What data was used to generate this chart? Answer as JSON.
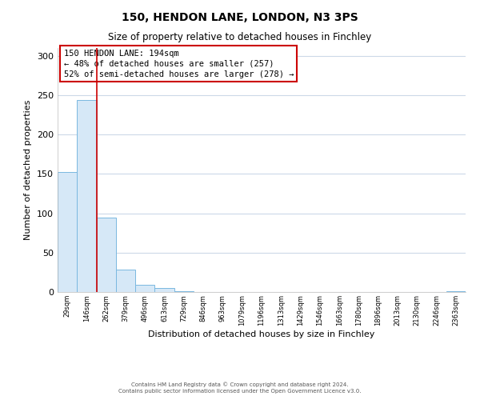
{
  "title": "150, HENDON LANE, LONDON, N3 3PS",
  "subtitle": "Size of property relative to detached houses in Finchley",
  "xlabel": "Distribution of detached houses by size in Finchley",
  "ylabel": "Number of detached properties",
  "bar_values": [
    152,
    244,
    95,
    28,
    9,
    5,
    1,
    0,
    0,
    0,
    0,
    0,
    0,
    0,
    0,
    0,
    0,
    0,
    0,
    0,
    1
  ],
  "bin_labels": [
    "29sqm",
    "146sqm",
    "262sqm",
    "379sqm",
    "496sqm",
    "613sqm",
    "729sqm",
    "846sqm",
    "963sqm",
    "1079sqm",
    "1196sqm",
    "1313sqm",
    "1429sqm",
    "1546sqm",
    "1663sqm",
    "1780sqm",
    "1896sqm",
    "2013sqm",
    "2130sqm",
    "2246sqm",
    "2363sqm"
  ],
  "bar_color": "#d6e8f7",
  "bar_edge_color": "#7ab8e0",
  "vline_x_index": 1.5,
  "vline_color": "#cc0000",
  "annotation_title": "150 HENDON LANE: 194sqm",
  "annotation_line1": "← 48% of detached houses are smaller (257)",
  "annotation_line2": "52% of semi-detached houses are larger (278) →",
  "annotation_box_color": "#ffffff",
  "annotation_box_edge": "#cc0000",
  "ylim": [
    0,
    310
  ],
  "yticks": [
    0,
    50,
    100,
    150,
    200,
    250,
    300
  ],
  "footer1": "Contains HM Land Registry data © Crown copyright and database right 2024.",
  "footer2": "Contains public sector information licensed under the Open Government Licence v3.0.",
  "bg_color": "#ffffff",
  "grid_color": "#ccd9e8",
  "title_fontsize": 10,
  "subtitle_fontsize": 8.5,
  "ylabel_fontsize": 8,
  "xlabel_fontsize": 8,
  "tick_fontsize": 6,
  "footer_fontsize": 5,
  "annotation_fontsize": 7.5
}
